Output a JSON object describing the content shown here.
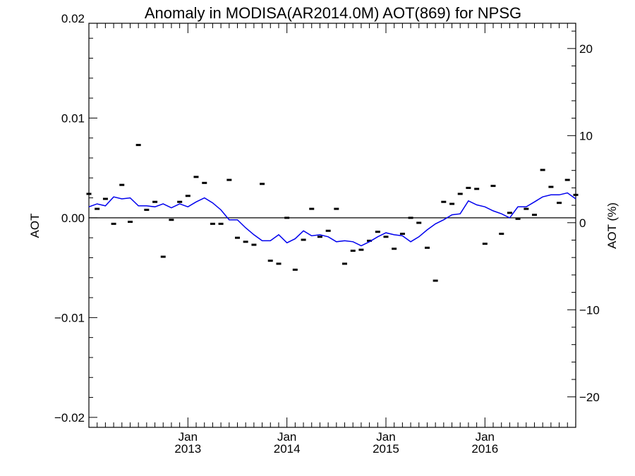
{
  "chart_data": {
    "type": "line",
    "title": "Anomaly in MODISA(AR2014.0M) AOT(869) for NPSG",
    "ylabel": "AOT",
    "y2label": "AOT (%)",
    "xlim": [
      2012.0,
      2016.917
    ],
    "ylim": [
      -0.021,
      0.0195
    ],
    "y2lim": [
      -23.5,
      22.9
    ],
    "y_ticks": [
      {
        "value": 0.02,
        "label": "0.02"
      },
      {
        "value": 0.01,
        "label": "0.01"
      },
      {
        "value": 0.0,
        "label": "0.00"
      },
      {
        "value": -0.01,
        "label": "−0.01"
      },
      {
        "value": -0.02,
        "label": "−0.02"
      }
    ],
    "y2_ticks": [
      {
        "value": 20,
        "label": "20"
      },
      {
        "value": 10,
        "label": "10"
      },
      {
        "value": 0,
        "label": "0"
      },
      {
        "value": -10,
        "label": "−10"
      },
      {
        "value": -20,
        "label": "−20"
      }
    ],
    "x_ticks": [
      {
        "value": 2013.0,
        "month": "Jan",
        "year": "2013"
      },
      {
        "value": 2014.0,
        "month": "Jan",
        "year": "2014"
      },
      {
        "value": 2015.0,
        "month": "Jan",
        "year": "2015"
      },
      {
        "value": 2016.0,
        "month": "Jan",
        "year": "2016"
      }
    ],
    "zero_line": 0,
    "series": [
      {
        "kind": "markers",
        "color": "#000000",
        "x": [
          2012.0,
          2012.083,
          2012.167,
          2012.25,
          2012.333,
          2012.417,
          2012.5,
          2012.583,
          2012.667,
          2012.75,
          2012.833,
          2012.917,
          2013.0,
          2013.083,
          2013.167,
          2013.25,
          2013.333,
          2013.417,
          2013.5,
          2013.583,
          2013.667,
          2013.75,
          2013.833,
          2013.917,
          2014.0,
          2014.083,
          2014.167,
          2014.25,
          2014.333,
          2014.417,
          2014.5,
          2014.583,
          2014.667,
          2014.75,
          2014.833,
          2014.917,
          2015.0,
          2015.083,
          2015.167,
          2015.25,
          2015.333,
          2015.417,
          2015.5,
          2015.583,
          2015.667,
          2015.75,
          2015.833,
          2015.917,
          2016.0,
          2016.083,
          2016.167,
          2016.25,
          2016.333,
          2016.417,
          2016.5,
          2016.583,
          2016.667,
          2016.75,
          2016.833,
          2016.917
        ],
        "y": [
          0.0024,
          0.0009,
          0.0019,
          -0.0006,
          0.0033,
          -0.0004,
          0.0073,
          0.0008,
          0.0016,
          -0.0039,
          -0.0002,
          0.0016,
          0.0022,
          0.0041,
          0.0035,
          -0.0006,
          -0.0006,
          0.0038,
          -0.002,
          -0.0024,
          -0.0027,
          0.0034,
          -0.0043,
          -0.0046,
          0.0,
          -0.0052,
          -0.0022,
          0.0009,
          -0.0019,
          -0.0013,
          0.0009,
          -0.0046,
          -0.0033,
          -0.0032,
          -0.0023,
          -0.0014,
          -0.0019,
          -0.0031,
          -0.0016,
          0.0,
          -0.0005,
          -0.003,
          -0.0063,
          0.0016,
          0.0014,
          0.0024,
          0.003,
          0.0029,
          -0.0026,
          0.0032,
          -0.0016,
          0.0005,
          -0.0001,
          0.0009,
          0.0003,
          0.0048,
          0.0031,
          0.0015,
          0.0038,
          0.0023
        ]
      },
      {
        "kind": "line",
        "color": "#0000ee",
        "x": [
          2012.0,
          2012.083,
          2012.167,
          2012.25,
          2012.333,
          2012.417,
          2012.5,
          2012.583,
          2012.667,
          2012.75,
          2012.833,
          2012.917,
          2013.0,
          2013.083,
          2013.167,
          2013.25,
          2013.333,
          2013.417,
          2013.5,
          2013.583,
          2013.667,
          2013.75,
          2013.833,
          2013.917,
          2014.0,
          2014.083,
          2014.167,
          2014.25,
          2014.333,
          2014.417,
          2014.5,
          2014.583,
          2014.667,
          2014.75,
          2014.833,
          2014.917,
          2015.0,
          2015.083,
          2015.167,
          2015.25,
          2015.333,
          2015.417,
          2015.5,
          2015.583,
          2015.667,
          2015.75,
          2015.833,
          2015.917,
          2016.0,
          2016.083,
          2016.167,
          2016.25,
          2016.333,
          2016.417,
          2016.5,
          2016.583,
          2016.667,
          2016.75,
          2016.833,
          2016.917
        ],
        "y": [
          0.0011,
          0.0014,
          0.0012,
          0.0021,
          0.0019,
          0.002,
          0.0012,
          0.0012,
          0.0011,
          0.0014,
          0.001,
          0.0014,
          0.0011,
          0.0016,
          0.002,
          0.0015,
          0.0008,
          -0.0002,
          -0.0002,
          -0.001,
          -0.0017,
          -0.0023,
          -0.0023,
          -0.0017,
          -0.0025,
          -0.0021,
          -0.0013,
          -0.0018,
          -0.0017,
          -0.0019,
          -0.0024,
          -0.0023,
          -0.0024,
          -0.0028,
          -0.0024,
          -0.0019,
          -0.0015,
          -0.0017,
          -0.0018,
          -0.0024,
          -0.0019,
          -0.0012,
          -0.0006,
          -0.0002,
          0.0003,
          0.0004,
          0.0017,
          0.0013,
          0.0011,
          0.0007,
          0.0004,
          0.0,
          0.0011,
          0.0011,
          0.0016,
          0.0021,
          0.0023,
          0.0023,
          0.0025,
          0.0019
        ]
      }
    ]
  }
}
